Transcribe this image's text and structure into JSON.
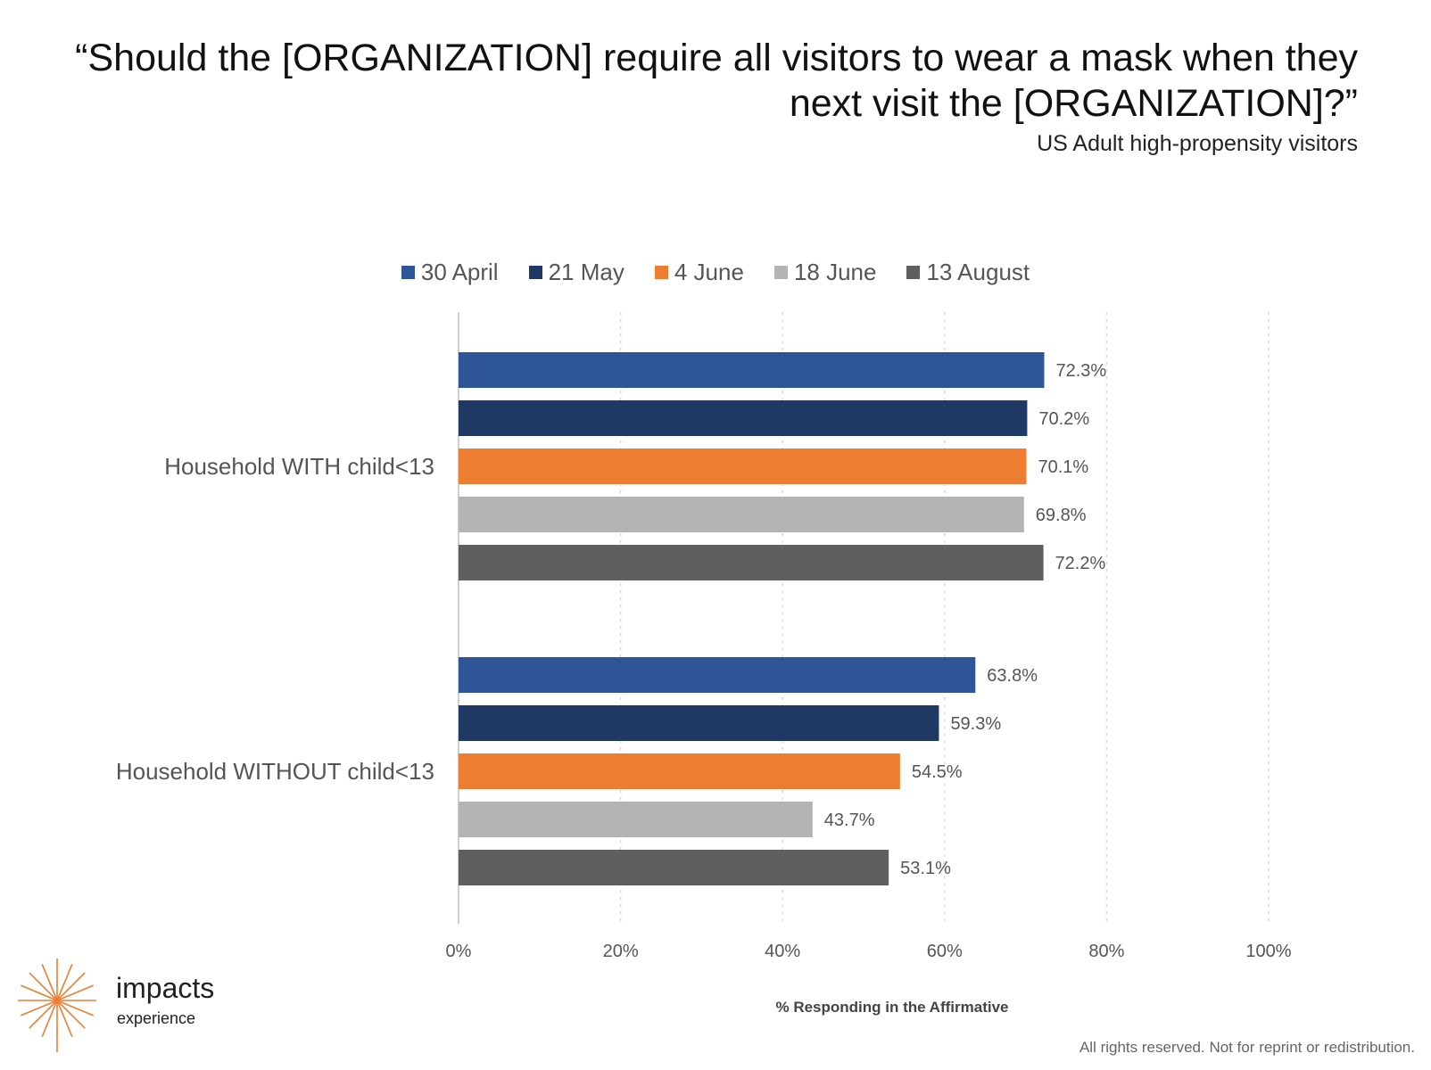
{
  "header": {
    "title": "“Should the [ORGANIZATION] require all visitors to wear a mask when they next visit the [ORGANIZATION]?”",
    "subtitle": "US Adult high-propensity visitors"
  },
  "chart_data": {
    "type": "bar",
    "orientation": "horizontal",
    "categories": [
      "Household WITH child<13",
      "Household WITHOUT child<13"
    ],
    "series": [
      {
        "name": "30 April",
        "color": "#2E5597",
        "values": [
          72.3,
          63.8
        ]
      },
      {
        "name": "21 May",
        "color": "#1F3864",
        "values": [
          70.2,
          59.3
        ]
      },
      {
        "name": "4 June",
        "color": "#ED7D31",
        "values": [
          70.1,
          54.5
        ]
      },
      {
        "name": "18 June",
        "color": "#B4B4B4",
        "values": [
          69.8,
          43.7
        ]
      },
      {
        "name": "13 August",
        "color": "#5F5F5F",
        "values": [
          72.2,
          53.1
        ]
      }
    ],
    "xlabel": "% Responding in the Affirmative",
    "xlim": [
      0,
      100
    ],
    "xticks": [
      "0%",
      "20%",
      "40%",
      "60%",
      "80%",
      "100%"
    ],
    "legend_position": "top",
    "grid": true,
    "value_suffix": "%"
  },
  "footer": {
    "logo_name": "impacts",
    "logo_sub": "experience",
    "logo_color": "#ED7D31",
    "copyright": "All rights reserved. Not for reprint or redistribution."
  }
}
